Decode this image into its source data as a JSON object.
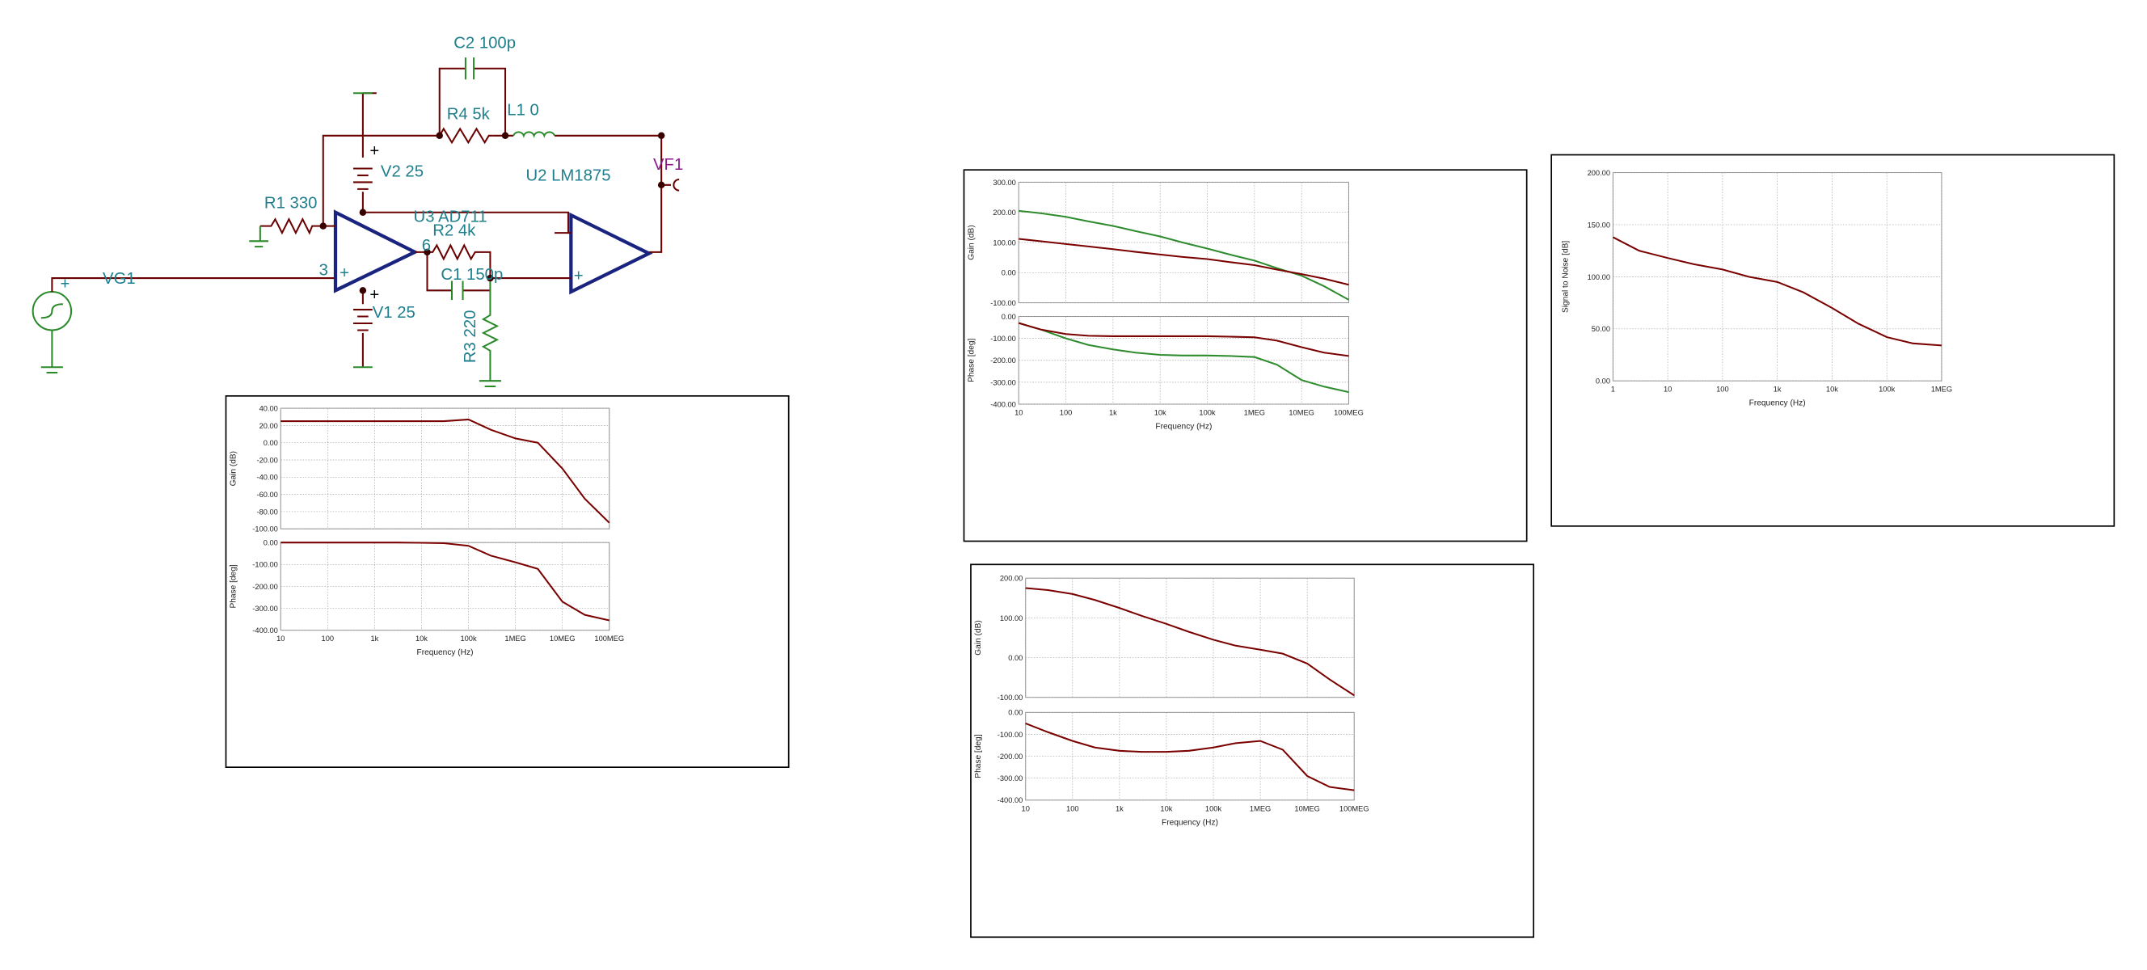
{
  "schematic": {
    "labels": [
      "C2 100p",
      "R4 5k",
      "L1 0",
      "V2 25",
      "U2 LM1875",
      "VF1",
      "R1 330",
      "U3 AD711",
      "R2 4k",
      "C1 150p",
      "V1 25",
      "R3 220",
      "VG1",
      "3",
      "6",
      "+",
      "+",
      "+",
      "+",
      "+"
    ]
  },
  "chart_data": [
    {
      "type": "line",
      "log_x": true,
      "grid": true,
      "xlabel": "Frequency (Hz)",
      "xlim": [
        10,
        100000000
      ],
      "xticks": [
        10,
        100,
        {
          "value": 1000,
          "label": "1k"
        },
        {
          "value": 10000,
          "label": "10k"
        },
        {
          "value": 100000,
          "label": "100k"
        },
        {
          "value": 1000000,
          "label": "1MEG"
        },
        {
          "value": 10000000,
          "label": "10MEG"
        },
        {
          "value": 100000000,
          "label": "100MEG"
        }
      ],
      "x": [
        10,
        30,
        100,
        300,
        1000,
        3000,
        10000,
        30000,
        100000,
        300000,
        1000000,
        3000000,
        10000000,
        30000000,
        100000000
      ],
      "panels": [
        {
          "ylabel": "Gain (dB)",
          "ylim": [
            -100,
            40
          ],
          "yticks": [
            {
              "value": 40,
              "label": "40.00"
            },
            {
              "value": 20,
              "label": "20.00"
            },
            {
              "value": 0,
              "label": "0.00"
            },
            {
              "value": -20,
              "label": "-20.00"
            },
            {
              "value": -40,
              "label": "-40.00"
            },
            {
              "value": -60,
              "label": "-60.00"
            },
            {
              "value": -80,
              "label": "-80.00"
            },
            {
              "value": -100,
              "label": "-100.00"
            }
          ],
          "series": [
            {
              "color": "#7a0000",
              "values": [
                25,
                25,
                25,
                25,
                25,
                25,
                25,
                25,
                27,
                15,
                5,
                0,
                -30,
                -65,
                -93
              ]
            }
          ]
        },
        {
          "ylabel": "Phase [deg]",
          "ylim": [
            -400,
            0
          ],
          "yticks": [
            {
              "value": 0,
              "label": "0.00"
            },
            {
              "value": -100,
              "label": "-100.00"
            },
            {
              "value": -200,
              "label": "-200.00"
            },
            {
              "value": -300,
              "label": "-300.00"
            },
            {
              "value": -400,
              "label": "-400.00"
            }
          ],
          "series": [
            {
              "color": "#7a0000",
              "values": [
                0,
                0,
                0,
                0,
                0,
                0,
                -1,
                -3,
                -15,
                -60,
                -90,
                -120,
                -270,
                -330,
                -355
              ]
            }
          ]
        }
      ]
    },
    {
      "type": "line",
      "log_x": true,
      "grid": true,
      "xlabel": "Frequency (Hz)",
      "xlim": [
        10,
        100000000
      ],
      "xticks": [
        10,
        100,
        {
          "value": 1000,
          "label": "1k"
        },
        {
          "value": 10000,
          "label": "10k"
        },
        {
          "value": 100000,
          "label": "100k"
        },
        {
          "value": 1000000,
          "label": "1MEG"
        },
        {
          "value": 10000000,
          "label": "10MEG"
        },
        {
          "value": 100000000,
          "label": "100MEG"
        }
      ],
      "x": [
        10,
        30,
        100,
        300,
        1000,
        3000,
        10000,
        30000,
        100000,
        300000,
        1000000,
        3000000,
        10000000,
        30000000,
        100000000
      ],
      "panels": [
        {
          "ylabel": "Gain (dB)",
          "ylim": [
            -100,
            300
          ],
          "yticks": [
            {
              "value": 300,
              "label": "300.00"
            },
            {
              "value": 200,
              "label": "200.00"
            },
            {
              "value": 100,
              "label": "100.00"
            },
            {
              "value": 0,
              "label": "0.00"
            },
            {
              "value": -100,
              "label": "-100.00"
            }
          ],
          "series": [
            {
              "color": "#2e8b2e",
              "values": [
                205,
                197,
                185,
                170,
                155,
                138,
                120,
                100,
                80,
                60,
                40,
                15,
                -10,
                -45,
                -90
              ]
            },
            {
              "color": "#7a0000",
              "values": [
                112,
                104,
                95,
                87,
                78,
                69,
                60,
                52,
                45,
                35,
                25,
                10,
                -5,
                -20,
                -40
              ]
            }
          ]
        },
        {
          "ylabel": "Phase [deg]",
          "ylim": [
            -400,
            0
          ],
          "yticks": [
            {
              "value": 0,
              "label": "0.00"
            },
            {
              "value": -100,
              "label": "-100.00"
            },
            {
              "value": -200,
              "label": "-200.00"
            },
            {
              "value": -300,
              "label": "-300.00"
            },
            {
              "value": -400,
              "label": "-400.00"
            }
          ],
          "series": [
            {
              "color": "#2e8b2e",
              "values": [
                -30,
                -60,
                -100,
                -130,
                -150,
                -165,
                -175,
                -178,
                -178,
                -180,
                -185,
                -220,
                -290,
                -320,
                -345
              ]
            },
            {
              "color": "#7a0000",
              "values": [
                -30,
                -60,
                -80,
                -88,
                -90,
                -90,
                -90,
                -90,
                -90,
                -92,
                -95,
                -110,
                -140,
                -165,
                -180
              ]
            }
          ]
        }
      ]
    },
    {
      "type": "line",
      "log_x": true,
      "grid": true,
      "xlabel": "Frequency (Hz)",
      "xlim": [
        10,
        100000000
      ],
      "xticks": [
        10,
        100,
        {
          "value": 1000,
          "label": "1k"
        },
        {
          "value": 10000,
          "label": "10k"
        },
        {
          "value": 100000,
          "label": "100k"
        },
        {
          "value": 1000000,
          "label": "1MEG"
        },
        {
          "value": 10000000,
          "label": "10MEG"
        },
        {
          "value": 100000000,
          "label": "100MEG"
        }
      ],
      "x": [
        10,
        30,
        100,
        300,
        1000,
        3000,
        10000,
        30000,
        100000,
        300000,
        1000000,
        3000000,
        10000000,
        30000000,
        100000000
      ],
      "panels": [
        {
          "ylabel": "Gain (dB)",
          "ylim": [
            -100,
            200
          ],
          "yticks": [
            {
              "value": 200,
              "label": "200.00"
            },
            {
              "value": 100,
              "label": "100.00"
            },
            {
              "value": 0,
              "label": "0.00"
            },
            {
              "value": -100,
              "label": "-100.00"
            }
          ],
          "series": [
            {
              "color": "#7a0000",
              "values": [
                175,
                170,
                160,
                145,
                125,
                105,
                85,
                65,
                45,
                30,
                20,
                10,
                -15,
                -55,
                -95
              ]
            }
          ]
        },
        {
          "ylabel": "Phase [deg]",
          "ylim": [
            -400,
            0
          ],
          "yticks": [
            {
              "value": 0,
              "label": "0.00"
            },
            {
              "value": -100,
              "label": "-100.00"
            },
            {
              "value": -200,
              "label": "-200.00"
            },
            {
              "value": -300,
              "label": "-300.00"
            },
            {
              "value": -400,
              "label": "-400.00"
            }
          ],
          "series": [
            {
              "color": "#7a0000",
              "values": [
                -50,
                -90,
                -130,
                -160,
                -175,
                -180,
                -180,
                -175,
                -160,
                -140,
                -130,
                -170,
                -290,
                -340,
                -355
              ]
            }
          ]
        }
      ]
    },
    {
      "type": "line",
      "log_x": true,
      "grid": true,
      "xlabel": "Frequency (Hz)",
      "xlim": [
        1,
        1000000
      ],
      "xticks": [
        1,
        10,
        100,
        {
          "value": 1000,
          "label": "1k"
        },
        {
          "value": 10000,
          "label": "10k"
        },
        {
          "value": 100000,
          "label": "100k"
        },
        {
          "value": 1000000,
          "label": "1MEG"
        }
      ],
      "x": [
        1,
        3,
        10,
        30,
        100,
        300,
        1000,
        3000,
        10000,
        30000,
        100000,
        300000,
        1000000
      ],
      "panels": [
        {
          "ylabel": "Signal to Noise [dB]",
          "ylim": [
            0,
            200
          ],
          "yticks": [
            {
              "value": 200,
              "label": "200.00"
            },
            {
              "value": 150,
              "label": "150.00"
            },
            {
              "value": 100,
              "label": "100.00"
            },
            {
              "value": 50,
              "label": "50.00"
            },
            {
              "value": 0,
              "label": "0.00"
            }
          ],
          "series": [
            {
              "color": "#7a0000",
              "values": [
                138,
                125,
                118,
                112,
                107,
                100,
                95,
                85,
                70,
                55,
                42,
                36,
                34
              ]
            }
          ]
        }
      ]
    }
  ]
}
